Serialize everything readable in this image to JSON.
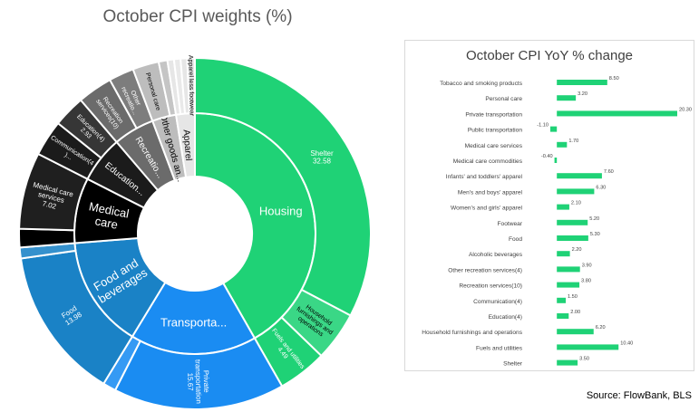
{
  "chart_data": [
    {
      "type": "sunburst",
      "title": "October CPI weights (%)",
      "categories": [
        {
          "name": "Housing",
          "color": "#1fd276",
          "children": [
            {
              "name": "Shelter",
              "label": "Shelter\n32.58",
              "value": 32.58
            },
            {
              "name": "Household furnishings and operations",
              "label": "Household\nfurnishings and\noperations",
              "value": 4.5
            },
            {
              "name": "Fuels and utilities",
              "label": "Fuels and utilities\n4.49",
              "value": 4.49
            }
          ]
        },
        {
          "name": "Transporta...",
          "color": "#1a8cf2",
          "children": [
            {
              "name": "Private transportation",
              "label": "Private\ntransportation\n15.67",
              "value": 15.67
            },
            {
              "name": "",
              "label": "",
              "value": 1.2
            }
          ]
        },
        {
          "name": "Food and beverages",
          "color": "#1a82c6",
          "children": [
            {
              "name": "Food",
              "label": "Food\n13.98",
              "value": 13.98
            },
            {
              "name": "",
              "label": "",
              "value": 1.0
            }
          ]
        },
        {
          "name": "Medical care",
          "color": "#000000",
          "children": [
            {
              "name": "",
              "label": "",
              "value": 1.7
            },
            {
              "name": "Medical care services",
              "label": "Medical care\nservices\n7.02",
              "value": 7.02
            }
          ]
        },
        {
          "name": "Education...",
          "color": "#1b1b1b",
          "children": [
            {
              "name": "Communication(4)",
              "label": "Communication(4\n)...",
              "value": 3.3
            },
            {
              "name": "Education(4)",
              "label": "Education(4)\n2.93",
              "value": 2.93
            }
          ]
        },
        {
          "name": "Recreatio...",
          "color": "#6b6b6b",
          "children": [
            {
              "name": "Recreation services(10)",
              "label": "Recreation\nservices(10)",
              "value": 3.2
            },
            {
              "name": "Other recreatio...",
              "label": "Other\nrecreatio...",
              "value": 2.3
            }
          ]
        },
        {
          "name": "Other goods an...",
          "color": "#bdbdbd",
          "children": [
            {
              "name": "Personal care",
              "label": "Personal care",
              "value": 2.4
            },
            {
              "name": "",
              "label": "",
              "value": 0.8
            }
          ]
        },
        {
          "name": "Apparel",
          "color": "#e6e6e6",
          "children": [
            {
              "name": "",
              "label": "",
              "value": 0.6
            },
            {
              "name": "",
              "label": "",
              "value": 0.6
            },
            {
              "name": "",
              "label": "",
              "value": 0.6
            },
            {
              "name": "Apparel less footwear",
              "label": "Apparel less footwear",
              "value": 0.7
            }
          ]
        }
      ]
    },
    {
      "type": "bar",
      "orientation": "horizontal",
      "title": "October CPI YoY % change",
      "categories": [
        "Tobacco and smoking products",
        "Personal care",
        "Private transportation",
        "Public transportation",
        "Medical care services",
        "Medical care commodities",
        "Infants' and toddlers' apparel",
        "Men's and boys' apparel",
        "Women's and girls' apparel",
        "Footwear",
        "Food",
        "Alcoholic beverages",
        "Other recreation services(4)",
        "Recreation services(10)",
        "Communication(4)",
        "Education(4)",
        "Household furnishings and operations",
        "Fuels and utilities",
        "Shelter"
      ],
      "values": [
        8.5,
        3.2,
        20.3,
        -1.1,
        1.7,
        -0.4,
        7.6,
        6.3,
        2.1,
        5.2,
        5.3,
        2.2,
        3.9,
        3.8,
        1.5,
        2.0,
        6.2,
        10.4,
        3.5
      ],
      "value_labels": [
        "8.50",
        "3.20",
        "20.30",
        "-1.10",
        "1.70",
        "-0.40",
        "7.60",
        "6.30",
        "2.10",
        "5.20",
        "5.30",
        "2.20",
        "3.90",
        "3.80",
        "1.50",
        "2.00",
        "6.20",
        "10.40",
        "3.50"
      ],
      "bar_color": "#1fd276",
      "xlim": [
        -1.1,
        20.3
      ]
    }
  ],
  "source": "Source: FlowBank, BLS"
}
